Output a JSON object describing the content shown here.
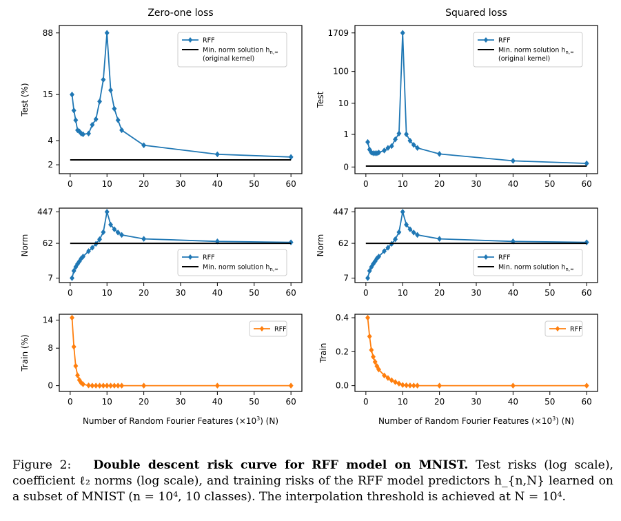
{
  "chart_data": [
    {
      "type": "line",
      "panel": "zero-one-test",
      "title": "Zero-one loss",
      "ylabel": "Test (%)",
      "xlabel": "",
      "y_scale": "log",
      "ylim_log": [
        2,
        88
      ],
      "yticks": [
        2,
        4,
        15,
        88
      ],
      "ytick_labels": [
        "2",
        "4",
        "15",
        "88"
      ],
      "xticks": [
        0,
        10,
        20,
        30,
        40,
        50,
        60
      ],
      "legend": "top-right",
      "series": [
        {
          "name": "RFF",
          "color": "#1f77b4",
          "marker": "diamond",
          "x": [
            0.5,
            1,
            1.5,
            2,
            2.5,
            3,
            3.5,
            5,
            6,
            7,
            8,
            9,
            10,
            11,
            12,
            13,
            14,
            20,
            40,
            60
          ],
          "y": [
            15.0,
            9.5,
            7.2,
            5.4,
            5.2,
            4.9,
            4.8,
            4.9,
            6.3,
            7.4,
            12.3,
            23,
            88,
            17,
            10,
            7.2,
            5.4,
            3.5,
            2.7,
            2.5
          ]
        },
        {
          "name": "Min. norm solution h_{n,∞}",
          "name_sub": "(original kernel)",
          "color": "#000000",
          "marker": "none",
          "x": [
            0,
            60
          ],
          "y": [
            2.3,
            2.3
          ]
        }
      ]
    },
    {
      "type": "line",
      "panel": "squared-test",
      "title": "Squared loss",
      "ylabel": "Test",
      "xlabel": "",
      "y_scale": "symlog",
      "yticks": [
        0,
        1,
        10,
        100,
        1709
      ],
      "ytick_labels": [
        "0",
        "1",
        "10",
        "100",
        "1709"
      ],
      "xticks": [
        0,
        10,
        20,
        30,
        40,
        50,
        60
      ],
      "legend": "top-right",
      "series": [
        {
          "name": "RFF",
          "color": "#1f77b4",
          "marker": "diamond",
          "x": [
            0.5,
            1,
            1.5,
            2,
            2.5,
            3,
            3.5,
            5,
            6,
            7,
            8,
            9,
            10,
            11,
            12,
            13,
            14,
            20,
            40,
            60
          ],
          "y": [
            0.7,
            0.45,
            0.36,
            0.34,
            0.34,
            0.34,
            0.36,
            0.42,
            0.5,
            0.56,
            0.8,
            1.1,
            1709,
            1.02,
            0.75,
            0.6,
            0.5,
            0.32,
            0.14,
            0.08
          ]
        },
        {
          "name": "Min. norm solution h_{n,∞}",
          "name_sub": "(original kernel)",
          "color": "#000000",
          "marker": "none",
          "x": [
            0,
            60
          ],
          "y": [
            0.02,
            0.02
          ]
        }
      ]
    },
    {
      "type": "line",
      "panel": "zero-one-norm",
      "title": "",
      "ylabel": "Norm",
      "xlabel": "",
      "y_scale": "log",
      "ylim_log": [
        7,
        447
      ],
      "yticks": [
        7,
        62,
        447
      ],
      "ytick_labels": [
        "7",
        "62",
        "447"
      ],
      "xticks": [
        0,
        10,
        20,
        30,
        40,
        50,
        60
      ],
      "legend": "bottom-right",
      "series": [
        {
          "name": "RFF",
          "color": "#1f77b4",
          "marker": "diamond",
          "x": [
            0.5,
            1,
            1.5,
            2,
            2.5,
            3,
            3.5,
            5,
            6,
            7,
            8,
            9,
            10,
            11,
            12,
            13,
            14,
            20,
            40,
            60
          ],
          "y": [
            7,
            11,
            14,
            17,
            20,
            24,
            27,
            38,
            47,
            60,
            80,
            125,
            447,
            200,
            150,
            122,
            105,
            82,
            70,
            66
          ]
        },
        {
          "name": "Min. norm solution h_{n,∞}",
          "color": "#000000",
          "marker": "none",
          "x": [
            0,
            60
          ],
          "y": [
            62,
            62
          ]
        }
      ]
    },
    {
      "type": "line",
      "panel": "squared-norm",
      "title": "",
      "ylabel": "Norm",
      "xlabel": "",
      "y_scale": "log",
      "ylim_log": [
        7,
        447
      ],
      "yticks": [
        7,
        62,
        447
      ],
      "ytick_labels": [
        "7",
        "62",
        "447"
      ],
      "xticks": [
        0,
        10,
        20,
        30,
        40,
        50,
        60
      ],
      "legend": "bottom-right",
      "series": [
        {
          "name": "RFF",
          "color": "#1f77b4",
          "marker": "diamond",
          "x": [
            0.5,
            1,
            1.5,
            2,
            2.5,
            3,
            3.5,
            5,
            6,
            7,
            8,
            9,
            10,
            11,
            12,
            13,
            14,
            20,
            40,
            60
          ],
          "y": [
            7,
            11,
            14,
            17,
            20,
            24,
            27,
            38,
            47,
            60,
            80,
            125,
            447,
            200,
            150,
            122,
            105,
            82,
            70,
            66
          ]
        },
        {
          "name": "Min. norm solution h_{n,∞}",
          "color": "#000000",
          "marker": "none",
          "x": [
            0,
            60
          ],
          "y": [
            62,
            62
          ]
        }
      ]
    },
    {
      "type": "line",
      "panel": "zero-one-train",
      "title": "",
      "ylabel": "Train (%)",
      "xlabel": "Number of Random Fourier Features (×10³) (N)",
      "y_scale": "linear",
      "ylim": [
        0,
        14.5
      ],
      "yticks": [
        0,
        8,
        14
      ],
      "ytick_labels": [
        "0",
        "8",
        "14"
      ],
      "xticks": [
        0,
        10,
        20,
        30,
        40,
        50,
        60
      ],
      "legend": "top-right",
      "series": [
        {
          "name": "RFF",
          "color": "#ff7f0e",
          "marker": "diamond",
          "x": [
            0.5,
            1,
            1.5,
            2,
            2.5,
            3,
            3.5,
            5,
            6,
            7,
            8,
            9,
            10,
            11,
            12,
            13,
            14,
            20,
            40,
            60
          ],
          "y": [
            14.5,
            8.3,
            4.2,
            2.2,
            1.2,
            0.6,
            0.3,
            0.05,
            0,
            0,
            0,
            0,
            0,
            0,
            0,
            0,
            0,
            0,
            0,
            0
          ]
        }
      ]
    },
    {
      "type": "line",
      "panel": "squared-train",
      "title": "",
      "ylabel": "Train",
      "xlabel": "Number of Random Fourier Features (×10³) (N)",
      "y_scale": "linear",
      "ylim": [
        0,
        0.4
      ],
      "yticks": [
        0.0,
        0.2,
        0.4
      ],
      "ytick_labels": [
        "0.0",
        "0.2",
        "0.4"
      ],
      "xticks": [
        0,
        10,
        20,
        30,
        40,
        50,
        60
      ],
      "legend": "top-right",
      "series": [
        {
          "name": "RFF",
          "color": "#ff7f0e",
          "marker": "diamond",
          "x": [
            0.5,
            1,
            1.5,
            2,
            2.5,
            3,
            3.5,
            5,
            6,
            7,
            8,
            9,
            10,
            11,
            12,
            13,
            14,
            20,
            40,
            60
          ],
          "y": [
            0.4,
            0.29,
            0.21,
            0.17,
            0.14,
            0.115,
            0.095,
            0.06,
            0.045,
            0.032,
            0.021,
            0.012,
            0.004,
            0.002,
            0.001,
            0.0005,
            0.0002,
            0,
            0,
            0
          ]
        }
      ]
    }
  ],
  "caption": {
    "label": "Figure 2:",
    "bold": "Double descent risk curve for RFF model on MNIST.",
    "text": "Test risks (log scale), coefficient ℓ₂ norms (log scale), and training risks of the RFF model predictors h_{n,N} learned on a subset of MNIST (n = 10⁴, 10 classes). The interpolation threshold is achieved at N = 10⁴."
  }
}
